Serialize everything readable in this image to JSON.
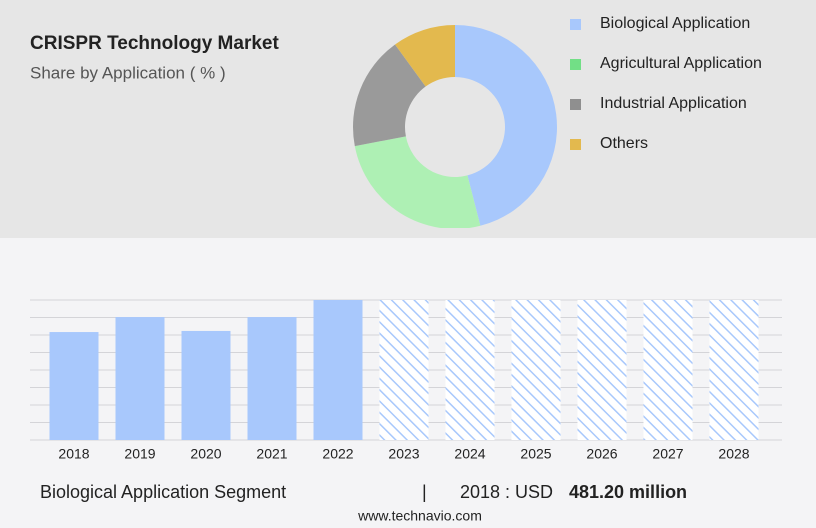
{
  "chart_data": [
    {
      "type": "donut",
      "title": "CRISPR Technology Market",
      "subtitle": "Share by Application ( % )",
      "categories": [
        "Biological Application",
        "Agricultural Application",
        "Industrial Application",
        "Others"
      ],
      "values": [
        46,
        26,
        18,
        10
      ],
      "colors": [
        "#a8c8fc",
        "#aef0b4",
        "#9a9a9a",
        "#e3b94e"
      ],
      "legend_colors": [
        "#a8c8fc",
        "#72df86",
        "#8f8f8f",
        "#e3b94e"
      ]
    },
    {
      "type": "bar",
      "categories": [
        "2018",
        "2019",
        "2020",
        "2021",
        "2022",
        "2023",
        "2024",
        "2025",
        "2026",
        "2027",
        "2028"
      ],
      "values": [
        481.2,
        548,
        486,
        548,
        624,
        null,
        null,
        null,
        null,
        null,
        null
      ],
      "color": "#a8c8fc",
      "ylim": [
        0,
        624
      ],
      "yticks": [
        0,
        78,
        156,
        234,
        312,
        390,
        468,
        546,
        624
      ],
      "grid": true
    }
  ],
  "footer": {
    "segment": "Biological Application Segment",
    "separator": "|",
    "year_text": "2018 : USD",
    "value_text": "481.20 million",
    "source": "www.technavio.com"
  }
}
